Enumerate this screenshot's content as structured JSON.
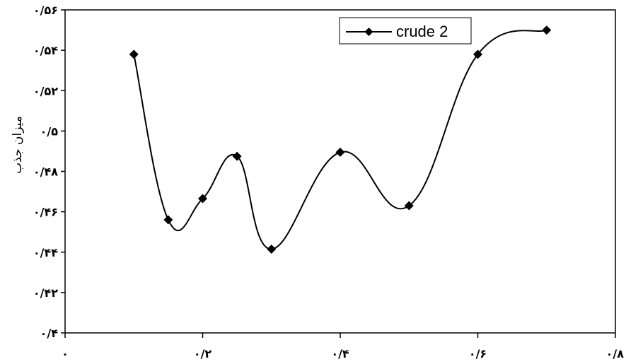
{
  "chart_data": {
    "type": "line",
    "title": "",
    "xlabel": "",
    "ylabel": "میزان جذب",
    "xlim": [
      0,
      0.8
    ],
    "ylim": [
      0.4,
      0.56
    ],
    "x_ticks": [
      0,
      0.2,
      0.4,
      0.6,
      0.8
    ],
    "x_tick_labels": [
      "۰",
      "۰/۲",
      "۰/۴",
      "۰/۶",
      "۰/۸"
    ],
    "y_ticks": [
      0.4,
      0.42,
      0.44,
      0.46,
      0.48,
      0.5,
      0.52,
      0.54,
      0.56
    ],
    "y_tick_labels": [
      "۰/۴",
      "۰/۴۲",
      "۰/۴۴",
      "۰/۴۶",
      "۰/۴۸",
      "۰/۵",
      "۰/۵۲",
      "۰/۵۴",
      "۰/۵۶"
    ],
    "grid": false,
    "legend_position": "top-right",
    "series": [
      {
        "name": "crude 2",
        "color": "#000000",
        "marker": "diamond",
        "x": [
          0.1,
          0.15,
          0.2,
          0.25,
          0.3,
          0.4,
          0.5,
          0.6,
          0.7
        ],
        "y": [
          0.538,
          0.456,
          0.4665,
          0.4875,
          0.4415,
          0.4895,
          0.463,
          0.538,
          0.55
        ]
      }
    ]
  }
}
